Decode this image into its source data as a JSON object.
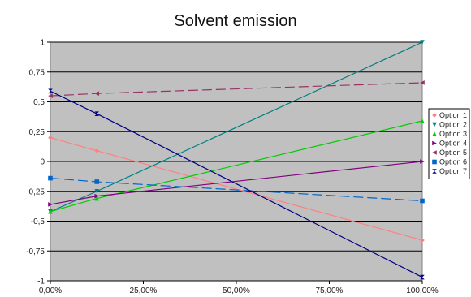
{
  "chart_data": {
    "type": "line",
    "title": "Solvent emission",
    "xlabel": "",
    "ylabel": "",
    "x": [
      0,
      12.5,
      100
    ],
    "xlim": [
      0,
      100
    ],
    "ylim": [
      -1,
      1
    ],
    "x_ticks": [
      0,
      25,
      50,
      75,
      100
    ],
    "x_tick_labels": [
      "0,00%",
      "25,00%",
      "50,00%",
      "75,00%",
      "100,00%"
    ],
    "y_ticks": [
      1,
      0.75,
      0.5,
      0.25,
      0,
      -0.25,
      -0.5,
      -0.75,
      -1
    ],
    "y_tick_labels": [
      "1",
      "0,75",
      "0,5",
      "0,25",
      "0",
      "-0,25",
      "-0,5",
      "-0,75",
      "-1"
    ],
    "grid": true,
    "legend_position": "right",
    "plot_background": "#c0c0c0",
    "series": [
      {
        "name": "Option 1",
        "values": [
          0.2,
          0.09,
          -0.66
        ],
        "color": "#ff8080",
        "marker": "diamond",
        "dash": "solid"
      },
      {
        "name": "Option 2",
        "values": [
          -0.42,
          -0.25,
          1.0
        ],
        "color": "#008080",
        "marker": "triangle-down",
        "dash": "solid"
      },
      {
        "name": "Option 3",
        "values": [
          -0.42,
          -0.31,
          0.34
        ],
        "color": "#00cc00",
        "marker": "triangle-up",
        "dash": "solid"
      },
      {
        "name": "Option 4",
        "values": [
          -0.36,
          -0.29,
          0.0
        ],
        "color": "#800080",
        "marker": "triangle-right",
        "dash": "solid"
      },
      {
        "name": "Option 5",
        "values": [
          0.55,
          0.57,
          0.66
        ],
        "color": "#993366",
        "marker": "triangle-left",
        "dash": "dashed"
      },
      {
        "name": "Option 6",
        "values": [
          -0.14,
          -0.17,
          -0.33
        ],
        "color": "#0066cc",
        "marker": "square",
        "dash": "dashed"
      },
      {
        "name": "Option 7",
        "values": [
          0.59,
          0.4,
          -0.97
        ],
        "color": "#000080",
        "marker": "hourglass",
        "dash": "solid"
      }
    ]
  }
}
